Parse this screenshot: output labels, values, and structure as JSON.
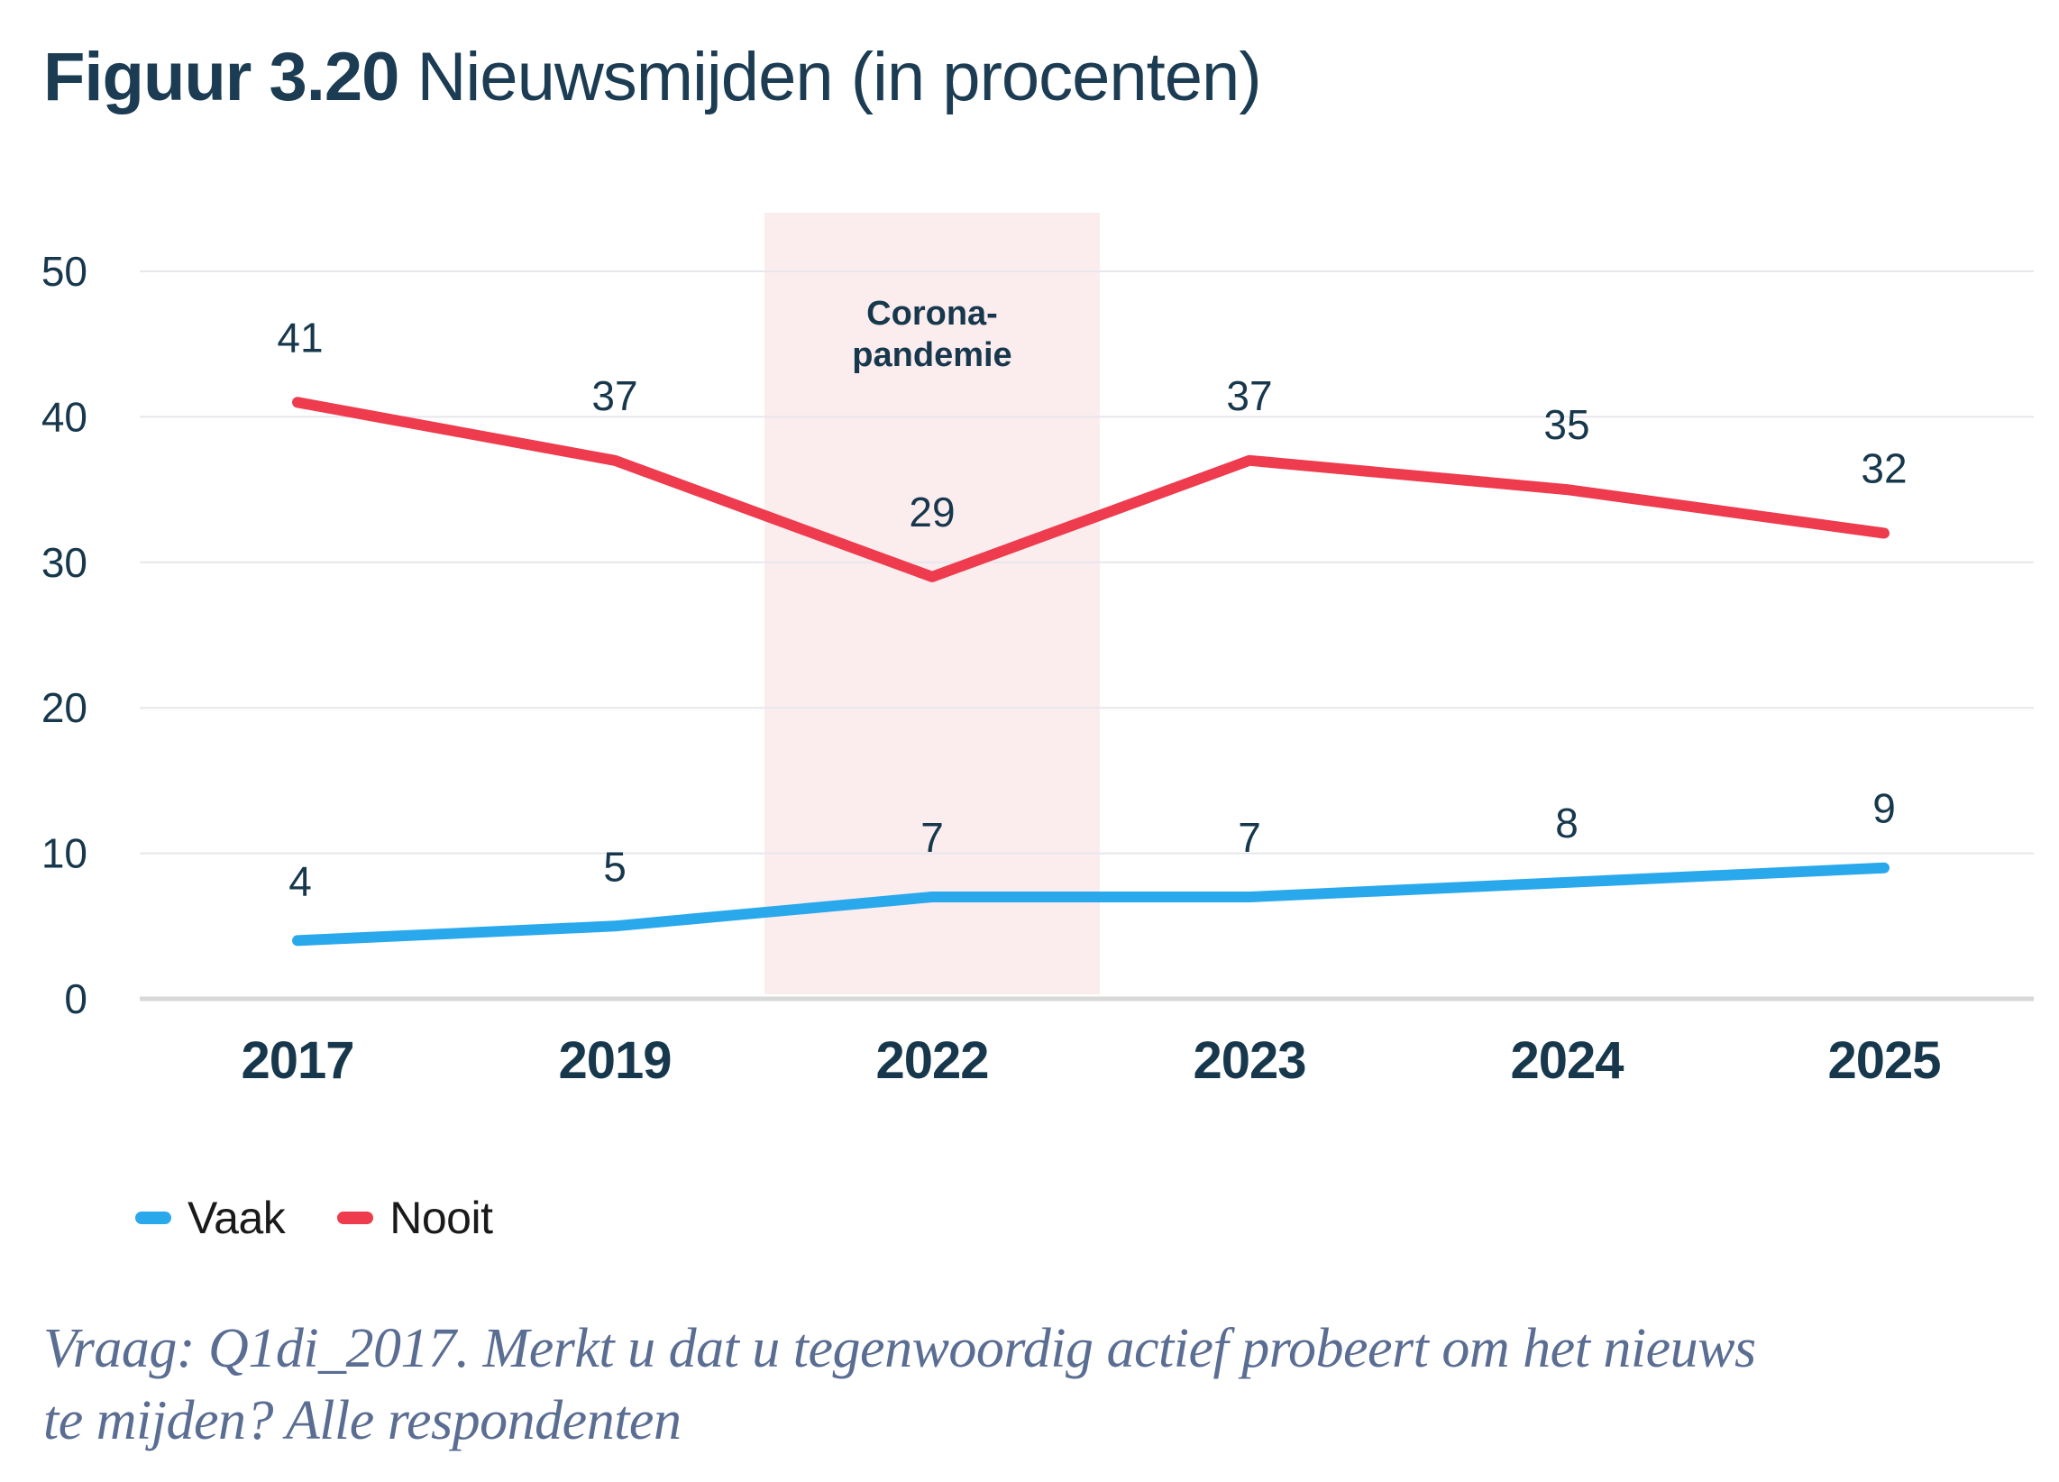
{
  "title": {
    "prefix": "Figuur 3.20",
    "rest": " Nieuwsmijden (in procenten)"
  },
  "chart_data": {
    "type": "line",
    "categories": [
      "2017",
      "2019",
      "2022",
      "2023",
      "2024",
      "2025"
    ],
    "series": [
      {
        "name": "Vaak",
        "color": "#29A8EC",
        "values": [
          4,
          5,
          7,
          7,
          8,
          9
        ]
      },
      {
        "name": "Nooit",
        "color": "#EE3B4D",
        "values": [
          41,
          37,
          29,
          37,
          35,
          32
        ]
      }
    ],
    "ylim": [
      0,
      50
    ],
    "yticks": [
      0,
      10,
      20,
      30,
      40,
      50
    ],
    "grid": true,
    "legend_position": "bottom-left",
    "highlight": {
      "center_category": "2022",
      "label_line1": "Corona-",
      "label_line2": "pandemie",
      "color": "#FBECEE"
    }
  },
  "colors": {
    "navy_text": "#17384C",
    "title_text": "#1B3C53",
    "gridline": "#E7E7EC",
    "baseline": "#D8D8D8",
    "legend_text": "#1A1A1A",
    "footnote_text": "#5A6D92",
    "background": "#FFFFFF"
  },
  "footnote": {
    "line1": "Vraag: Q1di_2017. Merkt u dat u tegenwoordig actief probeert om het nieuws",
    "line2": "te mijden? Alle respondenten"
  }
}
